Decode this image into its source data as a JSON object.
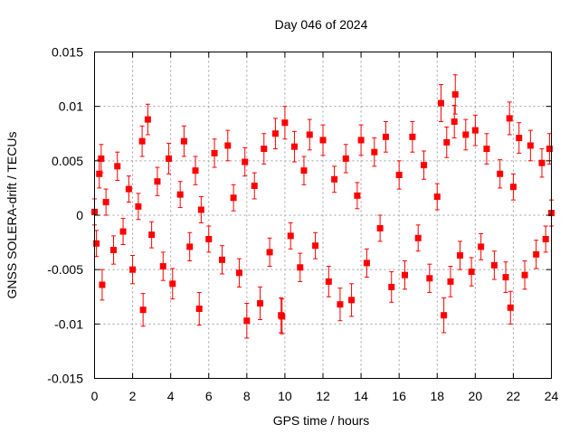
{
  "chart_data": {
    "type": "scatter",
    "title": "Day 046 of 2024",
    "xlabel": "GPS time / hours",
    "ylabel": "GNSS SOLERA-drift / TECUs",
    "xlim": [
      0,
      24
    ],
    "ylim": [
      -0.015,
      0.015
    ],
    "x_ticks": [
      0,
      2,
      4,
      6,
      8,
      10,
      12,
      14,
      16,
      18,
      20,
      22,
      24
    ],
    "x_tick_labels": [
      "0",
      "2",
      "4",
      "6",
      "8",
      "10",
      "12",
      "14",
      "16",
      "18",
      "20",
      "22",
      "24"
    ],
    "y_ticks": [
      -0.015,
      -0.01,
      -0.005,
      0,
      0.005,
      0.01,
      0.015
    ],
    "y_tick_labels": [
      "-0.015",
      "-0.01",
      "-0.005",
      "0",
      "0.005",
      "0.01",
      "0.015"
    ],
    "grid": true,
    "marker": "square",
    "error_bars": true,
    "series_color": "#ff0000",
    "series": [
      {
        "name": "SOLERA-drift",
        "x": [
          0.0,
          0.1,
          0.25,
          0.35,
          0.4,
          0.6,
          1.0,
          1.2,
          1.5,
          1.8,
          2.0,
          2.3,
          2.5,
          2.55,
          2.8,
          3.0,
          3.3,
          3.6,
          3.9,
          4.1,
          4.5,
          4.7,
          5.0,
          5.3,
          5.5,
          5.6,
          6.0,
          6.3,
          6.7,
          7.0,
          7.3,
          7.6,
          7.9,
          8.0,
          8.4,
          8.7,
          8.9,
          9.2,
          9.5,
          9.8,
          9.85,
          10.0,
          10.3,
          10.5,
          10.8,
          11.0,
          11.3,
          11.6,
          12.0,
          12.3,
          12.6,
          12.9,
          13.2,
          13.5,
          13.8,
          14.0,
          14.3,
          14.7,
          15.0,
          15.3,
          15.6,
          16.0,
          16.3,
          16.7,
          17.0,
          17.3,
          17.6,
          18.0,
          18.2,
          18.35,
          18.5,
          18.7,
          18.9,
          18.95,
          19.2,
          19.5,
          19.8,
          20.0,
          20.3,
          20.6,
          21.0,
          21.3,
          21.6,
          21.8,
          21.85,
          22.0,
          22.3,
          22.6,
          22.9,
          23.2,
          23.5,
          23.7,
          23.9,
          24.0
        ],
        "y": [
          0.0003,
          -0.0026,
          0.0038,
          0.0052,
          -0.0064,
          0.0012,
          -0.0032,
          0.0045,
          -0.0015,
          0.0024,
          -0.005,
          0.0008,
          0.0068,
          -0.0087,
          0.0088,
          -0.0018,
          0.0031,
          -0.0047,
          0.0052,
          -0.0063,
          0.0019,
          0.0068,
          -0.0029,
          0.0041,
          -0.0086,
          0.0005,
          -0.0022,
          0.0057,
          -0.0041,
          0.0064,
          0.0016,
          -0.0053,
          0.0049,
          -0.0097,
          0.0027,
          -0.0081,
          0.0061,
          -0.0034,
          0.0075,
          -0.0092,
          -0.0093,
          0.0085,
          -0.0019,
          0.0063,
          -0.0048,
          0.0041,
          0.0074,
          -0.0028,
          0.0069,
          -0.0061,
          0.0033,
          -0.0082,
          0.0052,
          -0.0078,
          0.0018,
          0.0069,
          -0.0044,
          0.0058,
          -0.0012,
          0.0072,
          -0.0066,
          0.0037,
          -0.0055,
          0.0072,
          -0.0021,
          0.0046,
          -0.0058,
          0.0017,
          0.0103,
          -0.0092,
          0.0067,
          -0.0061,
          0.0086,
          0.0111,
          -0.0037,
          0.0074,
          -0.0052,
          0.0078,
          -0.0029,
          0.0061,
          -0.0046,
          0.0038,
          -0.0057,
          0.0089,
          -0.0085,
          0.0026,
          0.0071,
          -0.0055,
          0.0064,
          -0.0036,
          0.0048,
          -0.0022,
          0.0061,
          0.0002
        ],
        "error": [
          0.0012,
          0.0012,
          0.0013,
          0.0013,
          0.0014,
          0.0012,
          0.0013,
          0.0013,
          0.0012,
          0.0012,
          0.0013,
          0.0012,
          0.0014,
          0.0015,
          0.0014,
          0.0012,
          0.0013,
          0.0013,
          0.0014,
          0.0014,
          0.0012,
          0.0014,
          0.0013,
          0.0013,
          0.0015,
          0.0012,
          0.0012,
          0.0013,
          0.0013,
          0.0014,
          0.0012,
          0.0013,
          0.0013,
          0.0016,
          0.0012,
          0.0015,
          0.0014,
          0.0013,
          0.0014,
          0.0016,
          0.0016,
          0.0015,
          0.0012,
          0.0014,
          0.0013,
          0.0013,
          0.0014,
          0.0012,
          0.0014,
          0.0014,
          0.0012,
          0.0015,
          0.0013,
          0.0015,
          0.0012,
          0.0014,
          0.0013,
          0.0013,
          0.0012,
          0.0014,
          0.0014,
          0.0013,
          0.0013,
          0.0014,
          0.0012,
          0.0013,
          0.0013,
          0.0012,
          0.0017,
          0.0016,
          0.0014,
          0.0014,
          0.0015,
          0.0018,
          0.0013,
          0.0014,
          0.0013,
          0.0014,
          0.0012,
          0.0014,
          0.0013,
          0.0013,
          0.0014,
          0.0015,
          0.0015,
          0.0012,
          0.0014,
          0.0013,
          0.0014,
          0.0013,
          0.0013,
          0.0012,
          0.0014,
          0.0012
        ]
      }
    ]
  }
}
